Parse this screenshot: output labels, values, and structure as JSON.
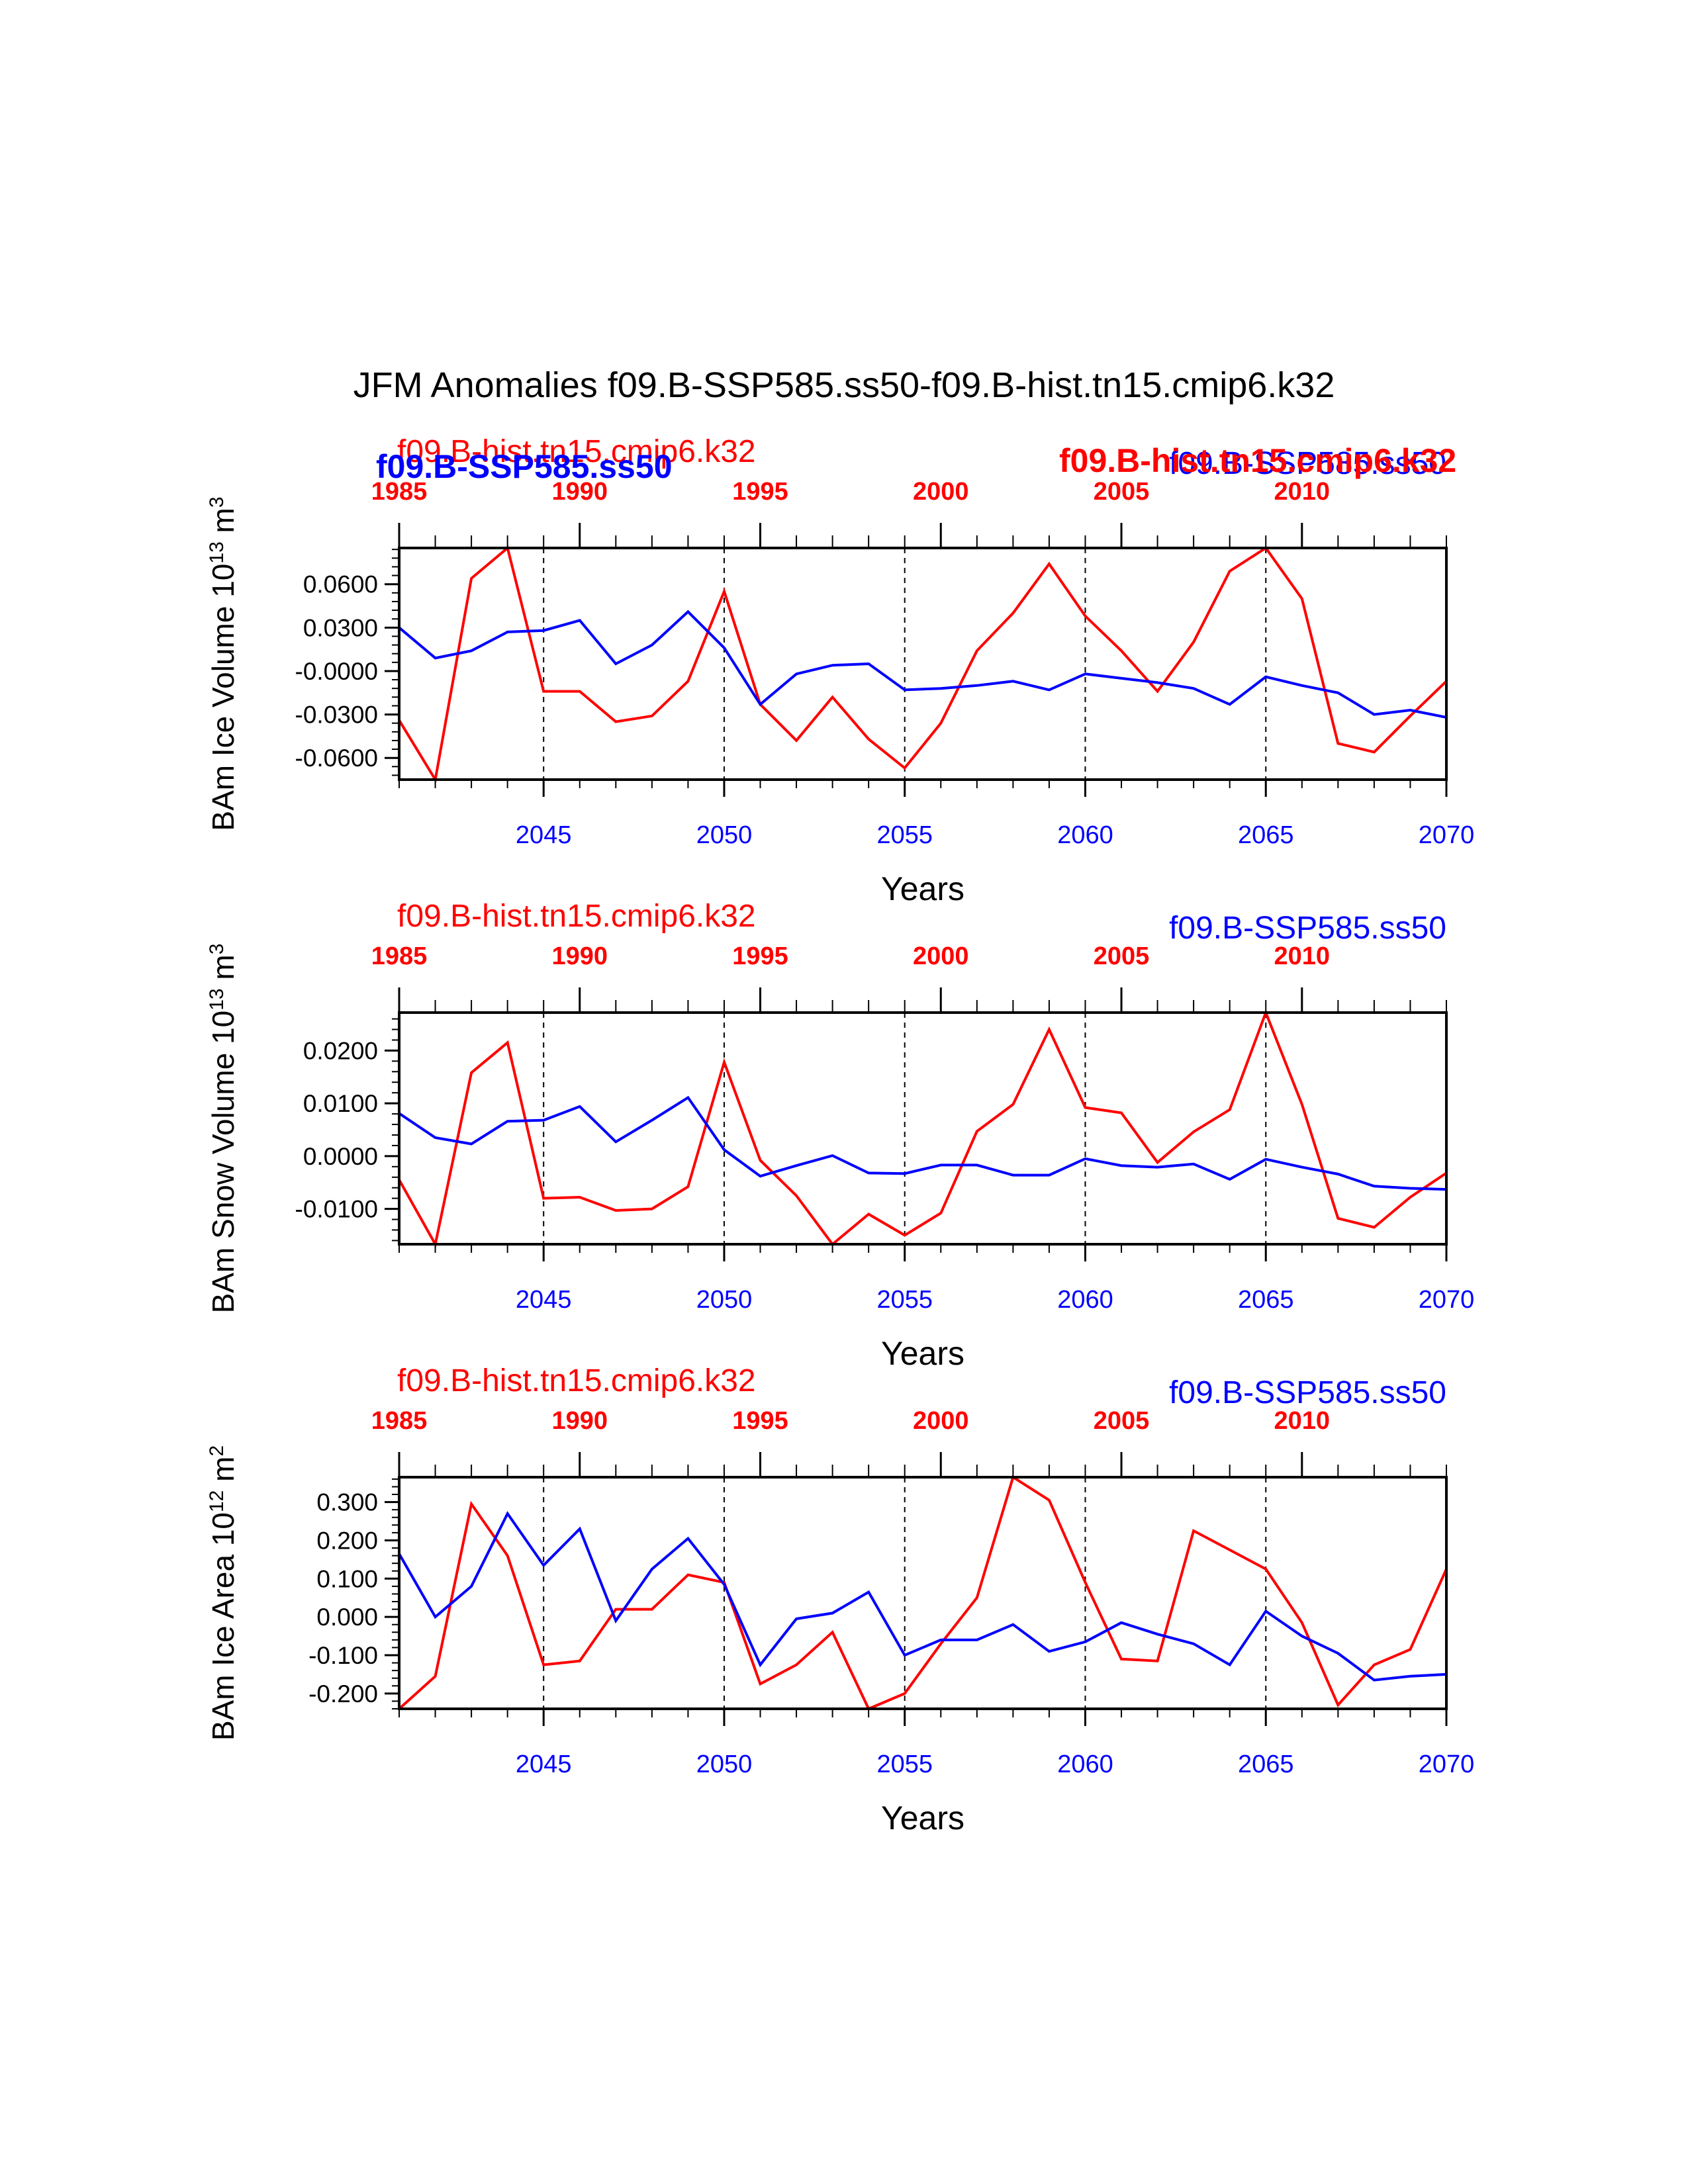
{
  "title": "JFM Anomalies f09.B-SSP585.ss50-f09.B-hist.tn15.cmip6.k32",
  "colors": {
    "red": "#ff0000",
    "blue": "#0000ff",
    "axis": "#000000"
  },
  "top_overlay_labels": [
    {
      "text": "f09.B-SSP585.ss50",
      "color": "blue"
    },
    {
      "text": "f09.B-hist.tn15.cmip6.k32",
      "color": "red"
    }
  ],
  "chart_data": [
    {
      "type": "line",
      "ylabel": "BAm Ice Volume 10",
      "ylabel_exp": "13",
      "ylabel_unit": " m",
      "ylabel_unit_exp": "3",
      "xlabel": "Years",
      "red_label": "f09.B-hist.tn15.cmip6.k32",
      "blue_label": "f09.B-SSP585.ss50",
      "ylim": [
        -0.075,
        0.085
      ],
      "yticks": [
        0.06,
        0.03,
        0.0,
        -0.03,
        -0.06
      ],
      "yticklabels": [
        "0.0600",
        "0.0300",
        "-0.0000",
        "-0.0300",
        "-0.0600"
      ],
      "xlim": [
        2041,
        2070
      ],
      "xticks_bottom": [
        2045,
        2050,
        2055,
        2060,
        2065,
        2070
      ],
      "xticks_top": [
        1985,
        1990,
        1995,
        2000,
        2005,
        2010
      ],
      "dashed_lines": [
        2045,
        2050,
        2055,
        2060,
        2065
      ],
      "series": [
        {
          "name": "f09.B-hist.tn15.cmip6.k32",
          "color": "red",
          "x_axis": "top",
          "x": [
            1985,
            1986,
            1987,
            1988,
            1989,
            1990,
            1991,
            1992,
            1993,
            1994,
            1995,
            1996,
            1997,
            1998,
            1999,
            2000,
            2001,
            2002,
            2003,
            2004,
            2005,
            2006,
            2007,
            2008,
            2009,
            2010,
            2011,
            2012,
            2013,
            2014
          ],
          "values": [
            -0.034,
            -0.075,
            0.064,
            0.085,
            -0.014,
            -0.014,
            -0.035,
            -0.031,
            -0.007,
            0.055,
            -0.023,
            -0.048,
            -0.018,
            -0.047,
            -0.067,
            -0.036,
            0.014,
            0.04,
            0.074,
            0.038,
            0.014,
            -0.014,
            0.02,
            0.069,
            0.085,
            0.05,
            -0.05,
            -0.056,
            -0.031,
            -0.007
          ]
        },
        {
          "name": "f09.B-SSP585.ss50",
          "color": "blue",
          "x_axis": "bottom",
          "x": [
            2041,
            2042,
            2043,
            2044,
            2045,
            2046,
            2047,
            2048,
            2049,
            2050,
            2051,
            2052,
            2053,
            2054,
            2055,
            2056,
            2057,
            2058,
            2059,
            2060,
            2061,
            2062,
            2063,
            2064,
            2065,
            2066,
            2067,
            2068,
            2069,
            2070
          ],
          "values": [
            0.03,
            0.009,
            0.014,
            0.027,
            0.028,
            0.035,
            0.005,
            0.018,
            0.041,
            0.016,
            -0.023,
            -0.002,
            0.004,
            0.005,
            -0.013,
            -0.012,
            -0.01,
            -0.007,
            -0.013,
            -0.002,
            -0.005,
            -0.008,
            -0.012,
            -0.023,
            -0.004,
            -0.01,
            -0.015,
            -0.03,
            -0.027,
            -0.032
          ]
        }
      ]
    },
    {
      "type": "line",
      "ylabel": "BAm Snow Volume 10",
      "ylabel_exp": "13",
      "ylabel_unit": " m",
      "ylabel_unit_exp": "3",
      "xlabel": "Years",
      "red_label": "f09.B-hist.tn15.cmip6.k32",
      "blue_label": "f09.B-SSP585.ss50",
      "ylim": [
        -0.0167,
        0.0272
      ],
      "yticks": [
        0.02,
        0.01,
        0.0,
        -0.01
      ],
      "yticklabels": [
        "0.0200",
        "0.0100",
        "0.0000",
        "-0.0100"
      ],
      "xlim": [
        2041,
        2070
      ],
      "xticks_bottom": [
        2045,
        2050,
        2055,
        2060,
        2065,
        2070
      ],
      "xticks_top": [
        1985,
        1990,
        1995,
        2000,
        2005,
        2010
      ],
      "dashed_lines": [
        2045,
        2050,
        2055,
        2060,
        2065
      ],
      "series": [
        {
          "name": "f09.B-hist.tn15.cmip6.k32",
          "color": "red",
          "x_axis": "top",
          "x": [
            1985,
            1986,
            1987,
            1988,
            1989,
            1990,
            1991,
            1992,
            1993,
            1994,
            1995,
            1996,
            1997,
            1998,
            1999,
            2000,
            2001,
            2002,
            2003,
            2004,
            2005,
            2006,
            2007,
            2008,
            2009,
            2010,
            2011,
            2012,
            2013,
            2014
          ],
          "values": [
            -0.0045,
            -0.0167,
            0.0158,
            0.0215,
            -0.008,
            -0.0078,
            -0.0103,
            -0.01,
            -0.0058,
            0.0178,
            -0.0008,
            -0.0075,
            -0.0167,
            -0.011,
            -0.015,
            -0.0108,
            0.0047,
            0.0098,
            0.024,
            0.0092,
            0.0082,
            -0.0012,
            0.0046,
            0.0088,
            0.0272,
            0.0098,
            -0.0118,
            -0.0135,
            -0.0078,
            -0.0032
          ]
        },
        {
          "name": "f09.B-SSP585.ss50",
          "color": "blue",
          "x_axis": "bottom",
          "x": [
            2041,
            2042,
            2043,
            2044,
            2045,
            2046,
            2047,
            2048,
            2049,
            2050,
            2051,
            2052,
            2053,
            2054,
            2055,
            2056,
            2057,
            2058,
            2059,
            2060,
            2061,
            2062,
            2063,
            2064,
            2065,
            2066,
            2067,
            2068,
            2069,
            2070
          ],
          "values": [
            0.0081,
            0.0035,
            0.0023,
            0.0066,
            0.0068,
            0.0094,
            0.0027,
            0.0068,
            0.0111,
            0.0012,
            -0.0038,
            -0.0018,
            0.0001,
            -0.0032,
            -0.0033,
            -0.0017,
            -0.0017,
            -0.0036,
            -0.0036,
            -0.0005,
            -0.0018,
            -0.0021,
            -0.0015,
            -0.0044,
            -0.0006,
            -0.0021,
            -0.0034,
            -0.0057,
            -0.0061,
            -0.0063
          ]
        }
      ]
    },
    {
      "type": "line",
      "ylabel": "BAm Ice Area 10",
      "ylabel_exp": "12",
      "ylabel_unit": " m",
      "ylabel_unit_exp": "2",
      "xlabel": "Years",
      "red_label": "f09.B-hist.tn15.cmip6.k32",
      "blue_label": "f09.B-SSP585.ss50",
      "ylim": [
        -0.24,
        0.365
      ],
      "yticks": [
        0.3,
        0.2,
        0.1,
        0.0,
        -0.1,
        -0.2
      ],
      "yticklabels": [
        "0.300",
        "0.200",
        "0.100",
        "0.000",
        "-0.100",
        "-0.200"
      ],
      "xlim": [
        2041,
        2070
      ],
      "xticks_bottom": [
        2045,
        2050,
        2055,
        2060,
        2065,
        2070
      ],
      "xticks_top": [
        1985,
        1990,
        1995,
        2000,
        2005,
        2010
      ],
      "dashed_lines": [
        2045,
        2050,
        2055,
        2060,
        2065
      ],
      "series": [
        {
          "name": "f09.B-hist.tn15.cmip6.k32",
          "color": "red",
          "x_axis": "top",
          "x": [
            1985,
            1986,
            1987,
            1988,
            1989,
            1990,
            1991,
            1992,
            1993,
            1994,
            1995,
            1996,
            1997,
            1998,
            1999,
            2000,
            2001,
            2002,
            2003,
            2004,
            2005,
            2006,
            2007,
            2008,
            2009,
            2010,
            2011,
            2012,
            2013,
            2014
          ],
          "values": [
            -0.24,
            -0.155,
            0.295,
            0.16,
            -0.125,
            -0.115,
            0.02,
            0.02,
            0.11,
            0.09,
            -0.175,
            -0.125,
            -0.04,
            -0.24,
            -0.2,
            -0.07,
            0.05,
            0.365,
            0.305,
            0.09,
            -0.11,
            -0.115,
            0.225,
            0.175,
            0.125,
            -0.015,
            -0.23,
            -0.125,
            -0.085,
            0.125
          ]
        },
        {
          "name": "f09.B-SSP585.ss50",
          "color": "blue",
          "x_axis": "bottom",
          "x": [
            2041,
            2042,
            2043,
            2044,
            2045,
            2046,
            2047,
            2048,
            2049,
            2050,
            2051,
            2052,
            2053,
            2054,
            2055,
            2056,
            2057,
            2058,
            2059,
            2060,
            2061,
            2062,
            2063,
            2064,
            2065,
            2066,
            2067,
            2068,
            2069,
            2070
          ],
          "values": [
            0.165,
            0.0,
            0.08,
            0.27,
            0.135,
            0.23,
            -0.01,
            0.125,
            0.205,
            0.085,
            -0.125,
            -0.005,
            0.01,
            0.065,
            -0.1,
            -0.06,
            -0.06,
            -0.02,
            -0.09,
            -0.065,
            -0.015,
            -0.045,
            -0.07,
            -0.125,
            0.015,
            -0.05,
            -0.095,
            -0.165,
            -0.155,
            -0.15
          ]
        }
      ]
    }
  ]
}
